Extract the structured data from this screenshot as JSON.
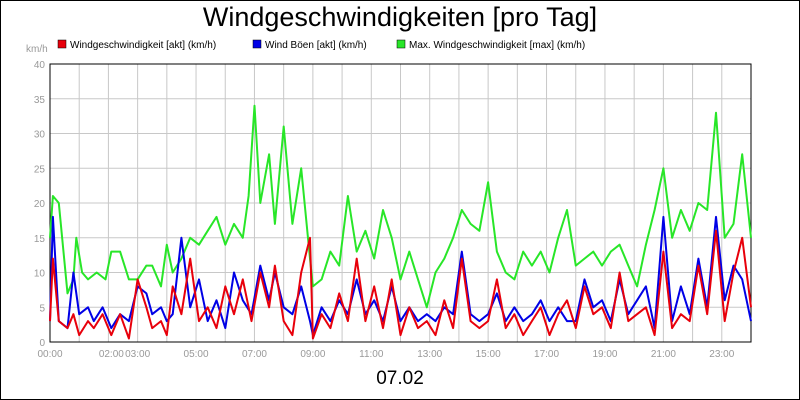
{
  "chart_data": {
    "type": "line",
    "title": "Windgeschwindigkeiten [pro Tag]",
    "ylabel": "km/h",
    "xlabel": "07.02",
    "ylim": [
      0,
      40
    ],
    "yticks": [
      0,
      5,
      10,
      15,
      20,
      25,
      30,
      35,
      40
    ],
    "xlim": [
      0,
      24
    ],
    "xticks": [
      {
        "value": 0,
        "label": "00:00"
      },
      {
        "value": 2.1,
        "label": "02:00"
      },
      {
        "value": 3.0,
        "label": "03:00"
      },
      {
        "value": 5.0,
        "label": "05:00"
      },
      {
        "value": 7.0,
        "label": "07:00"
      },
      {
        "value": 9.0,
        "label": "09:00"
      },
      {
        "value": 11.0,
        "label": "11:00"
      },
      {
        "value": 13.0,
        "label": "13:00"
      },
      {
        "value": 15.0,
        "label": "15:00"
      },
      {
        "value": 17.0,
        "label": "17:00"
      },
      {
        "value": 19.0,
        "label": "19:00"
      },
      {
        "value": 21.0,
        "label": "21:00"
      },
      {
        "value": 23.0,
        "label": "23:00"
      }
    ],
    "grid": true,
    "legend_position": "top",
    "series": [
      {
        "name": "Windgeschwindigkeit [akt] (km/h)",
        "color": "#e8000b",
        "points": [
          [
            0,
            3
          ],
          [
            0.1,
            12
          ],
          [
            0.3,
            3
          ],
          [
            0.6,
            2
          ],
          [
            0.8,
            4
          ],
          [
            1.0,
            1
          ],
          [
            1.3,
            3
          ],
          [
            1.5,
            2
          ],
          [
            1.8,
            4
          ],
          [
            2.1,
            1
          ],
          [
            2.4,
            4
          ],
          [
            2.7,
            0.5
          ],
          [
            3.0,
            9
          ],
          [
            3.3,
            5
          ],
          [
            3.5,
            2
          ],
          [
            3.8,
            3
          ],
          [
            4.0,
            1
          ],
          [
            4.2,
            8
          ],
          [
            4.5,
            4
          ],
          [
            4.8,
            12
          ],
          [
            5.1,
            3
          ],
          [
            5.4,
            5
          ],
          [
            5.7,
            2
          ],
          [
            6.0,
            8
          ],
          [
            6.3,
            4
          ],
          [
            6.6,
            9
          ],
          [
            6.9,
            3
          ],
          [
            7.2,
            10
          ],
          [
            7.5,
            5
          ],
          [
            7.7,
            11
          ],
          [
            8.0,
            3
          ],
          [
            8.3,
            1
          ],
          [
            8.6,
            10
          ],
          [
            8.9,
            15
          ],
          [
            9.0,
            0.5
          ],
          [
            9.3,
            4
          ],
          [
            9.6,
            2
          ],
          [
            9.9,
            7
          ],
          [
            10.2,
            3
          ],
          [
            10.5,
            12
          ],
          [
            10.8,
            3
          ],
          [
            11.1,
            8
          ],
          [
            11.4,
            2
          ],
          [
            11.7,
            9
          ],
          [
            12.0,
            1
          ],
          [
            12.3,
            5
          ],
          [
            12.6,
            2
          ],
          [
            12.9,
            3
          ],
          [
            13.2,
            1
          ],
          [
            13.5,
            6
          ],
          [
            13.8,
            2
          ],
          [
            14.1,
            12
          ],
          [
            14.4,
            3
          ],
          [
            14.7,
            2
          ],
          [
            15.0,
            3
          ],
          [
            15.3,
            9
          ],
          [
            15.6,
            2
          ],
          [
            15.9,
            4
          ],
          [
            16.2,
            1
          ],
          [
            16.5,
            3
          ],
          [
            16.8,
            5
          ],
          [
            17.1,
            1
          ],
          [
            17.4,
            4
          ],
          [
            17.7,
            6
          ],
          [
            18.0,
            2
          ],
          [
            18.3,
            8
          ],
          [
            18.6,
            4
          ],
          [
            18.9,
            5
          ],
          [
            19.2,
            2
          ],
          [
            19.5,
            10
          ],
          [
            19.8,
            3
          ],
          [
            20.1,
            4
          ],
          [
            20.4,
            5
          ],
          [
            20.7,
            1
          ],
          [
            21.0,
            13
          ],
          [
            21.3,
            2
          ],
          [
            21.6,
            4
          ],
          [
            21.9,
            3
          ],
          [
            22.2,
            11
          ],
          [
            22.5,
            4
          ],
          [
            22.8,
            16
          ],
          [
            23.1,
            3
          ],
          [
            23.4,
            10
          ],
          [
            23.7,
            15
          ],
          [
            24.0,
            5
          ]
        ]
      },
      {
        "name": "Wind Böen [akt] (km/h)",
        "color": "#0000e6",
        "points": [
          [
            0,
            3
          ],
          [
            0.1,
            18
          ],
          [
            0.3,
            3
          ],
          [
            0.6,
            2
          ],
          [
            0.8,
            10
          ],
          [
            1.0,
            4
          ],
          [
            1.3,
            5
          ],
          [
            1.5,
            3
          ],
          [
            1.8,
            5
          ],
          [
            2.1,
            2
          ],
          [
            2.4,
            4
          ],
          [
            2.7,
            3
          ],
          [
            3.0,
            8
          ],
          [
            3.3,
            7
          ],
          [
            3.5,
            4
          ],
          [
            3.8,
            5
          ],
          [
            4.0,
            3
          ],
          [
            4.2,
            4
          ],
          [
            4.5,
            15
          ],
          [
            4.8,
            5
          ],
          [
            5.1,
            9
          ],
          [
            5.4,
            3
          ],
          [
            5.7,
            6
          ],
          [
            6.0,
            2
          ],
          [
            6.3,
            10
          ],
          [
            6.6,
            6
          ],
          [
            6.9,
            4
          ],
          [
            7.2,
            11
          ],
          [
            7.5,
            6
          ],
          [
            7.7,
            10
          ],
          [
            8.0,
            5
          ],
          [
            8.3,
            4
          ],
          [
            8.6,
            8
          ],
          [
            8.9,
            3
          ],
          [
            9.0,
            1
          ],
          [
            9.3,
            5
          ],
          [
            9.6,
            3
          ],
          [
            9.9,
            6
          ],
          [
            10.2,
            4
          ],
          [
            10.5,
            9
          ],
          [
            10.8,
            4
          ],
          [
            11.1,
            6
          ],
          [
            11.4,
            3
          ],
          [
            11.7,
            8
          ],
          [
            12.0,
            3
          ],
          [
            12.3,
            5
          ],
          [
            12.6,
            3
          ],
          [
            12.9,
            4
          ],
          [
            13.2,
            3
          ],
          [
            13.5,
            5
          ],
          [
            13.8,
            4
          ],
          [
            14.1,
            13
          ],
          [
            14.4,
            4
          ],
          [
            14.7,
            3
          ],
          [
            15.0,
            4
          ],
          [
            15.3,
            7
          ],
          [
            15.6,
            3
          ],
          [
            15.9,
            5
          ],
          [
            16.2,
            3
          ],
          [
            16.5,
            4
          ],
          [
            16.8,
            6
          ],
          [
            17.1,
            3
          ],
          [
            17.4,
            5
          ],
          [
            17.7,
            3
          ],
          [
            18.0,
            3
          ],
          [
            18.3,
            9
          ],
          [
            18.6,
            5
          ],
          [
            18.9,
            6
          ],
          [
            19.2,
            3
          ],
          [
            19.5,
            9
          ],
          [
            19.8,
            4
          ],
          [
            20.1,
            6
          ],
          [
            20.4,
            8
          ],
          [
            20.7,
            2
          ],
          [
            21.0,
            18
          ],
          [
            21.3,
            3
          ],
          [
            21.6,
            8
          ],
          [
            21.9,
            4
          ],
          [
            22.2,
            12
          ],
          [
            22.5,
            5
          ],
          [
            22.8,
            18
          ],
          [
            23.1,
            6
          ],
          [
            23.4,
            11
          ],
          [
            23.7,
            9
          ],
          [
            24.0,
            3
          ]
        ]
      },
      {
        "name": "Max. Windgeschwindigkeit [max] (km/h)",
        "color": "#28e628",
        "points": [
          [
            0,
            15
          ],
          [
            0.1,
            21
          ],
          [
            0.3,
            20
          ],
          [
            0.6,
            7
          ],
          [
            0.8,
            9
          ],
          [
            0.9,
            15
          ],
          [
            1.1,
            10
          ],
          [
            1.3,
            9
          ],
          [
            1.6,
            10
          ],
          [
            1.9,
            9
          ],
          [
            2.1,
            13
          ],
          [
            2.4,
            13
          ],
          [
            2.7,
            9
          ],
          [
            3.0,
            9
          ],
          [
            3.3,
            11
          ],
          [
            3.5,
            11
          ],
          [
            3.8,
            8
          ],
          [
            4.0,
            14
          ],
          [
            4.2,
            10
          ],
          [
            4.5,
            12
          ],
          [
            4.8,
            15
          ],
          [
            5.1,
            14
          ],
          [
            5.4,
            16
          ],
          [
            5.7,
            18
          ],
          [
            6.0,
            14
          ],
          [
            6.3,
            17
          ],
          [
            6.6,
            15
          ],
          [
            6.8,
            21
          ],
          [
            7.0,
            34
          ],
          [
            7.2,
            20
          ],
          [
            7.5,
            27
          ],
          [
            7.7,
            17
          ],
          [
            8.0,
            31
          ],
          [
            8.3,
            17
          ],
          [
            8.6,
            25
          ],
          [
            8.9,
            12
          ],
          [
            9.0,
            8
          ],
          [
            9.3,
            9
          ],
          [
            9.6,
            13
          ],
          [
            9.9,
            11
          ],
          [
            10.2,
            21
          ],
          [
            10.5,
            13
          ],
          [
            10.8,
            16
          ],
          [
            11.1,
            12
          ],
          [
            11.4,
            19
          ],
          [
            11.7,
            15
          ],
          [
            12.0,
            9
          ],
          [
            12.3,
            13
          ],
          [
            12.6,
            9
          ],
          [
            12.9,
            5
          ],
          [
            13.2,
            10
          ],
          [
            13.5,
            12
          ],
          [
            13.8,
            15
          ],
          [
            14.1,
            19
          ],
          [
            14.4,
            17
          ],
          [
            14.7,
            16
          ],
          [
            15.0,
            23
          ],
          [
            15.3,
            13
          ],
          [
            15.6,
            10
          ],
          [
            15.9,
            9
          ],
          [
            16.2,
            13
          ],
          [
            16.5,
            11
          ],
          [
            16.8,
            13
          ],
          [
            17.1,
            10
          ],
          [
            17.4,
            15
          ],
          [
            17.7,
            19
          ],
          [
            18.0,
            11
          ],
          [
            18.3,
            12
          ],
          [
            18.6,
            13
          ],
          [
            18.9,
            11
          ],
          [
            19.2,
            13
          ],
          [
            19.5,
            14
          ],
          [
            19.8,
            11
          ],
          [
            20.1,
            8
          ],
          [
            20.4,
            14
          ],
          [
            20.7,
            19
          ],
          [
            21.0,
            25
          ],
          [
            21.3,
            15
          ],
          [
            21.6,
            19
          ],
          [
            21.9,
            16
          ],
          [
            22.2,
            20
          ],
          [
            22.5,
            19
          ],
          [
            22.8,
            33
          ],
          [
            23.1,
            15
          ],
          [
            23.4,
            17
          ],
          [
            23.7,
            27
          ],
          [
            24.0,
            15
          ]
        ]
      }
    ]
  }
}
